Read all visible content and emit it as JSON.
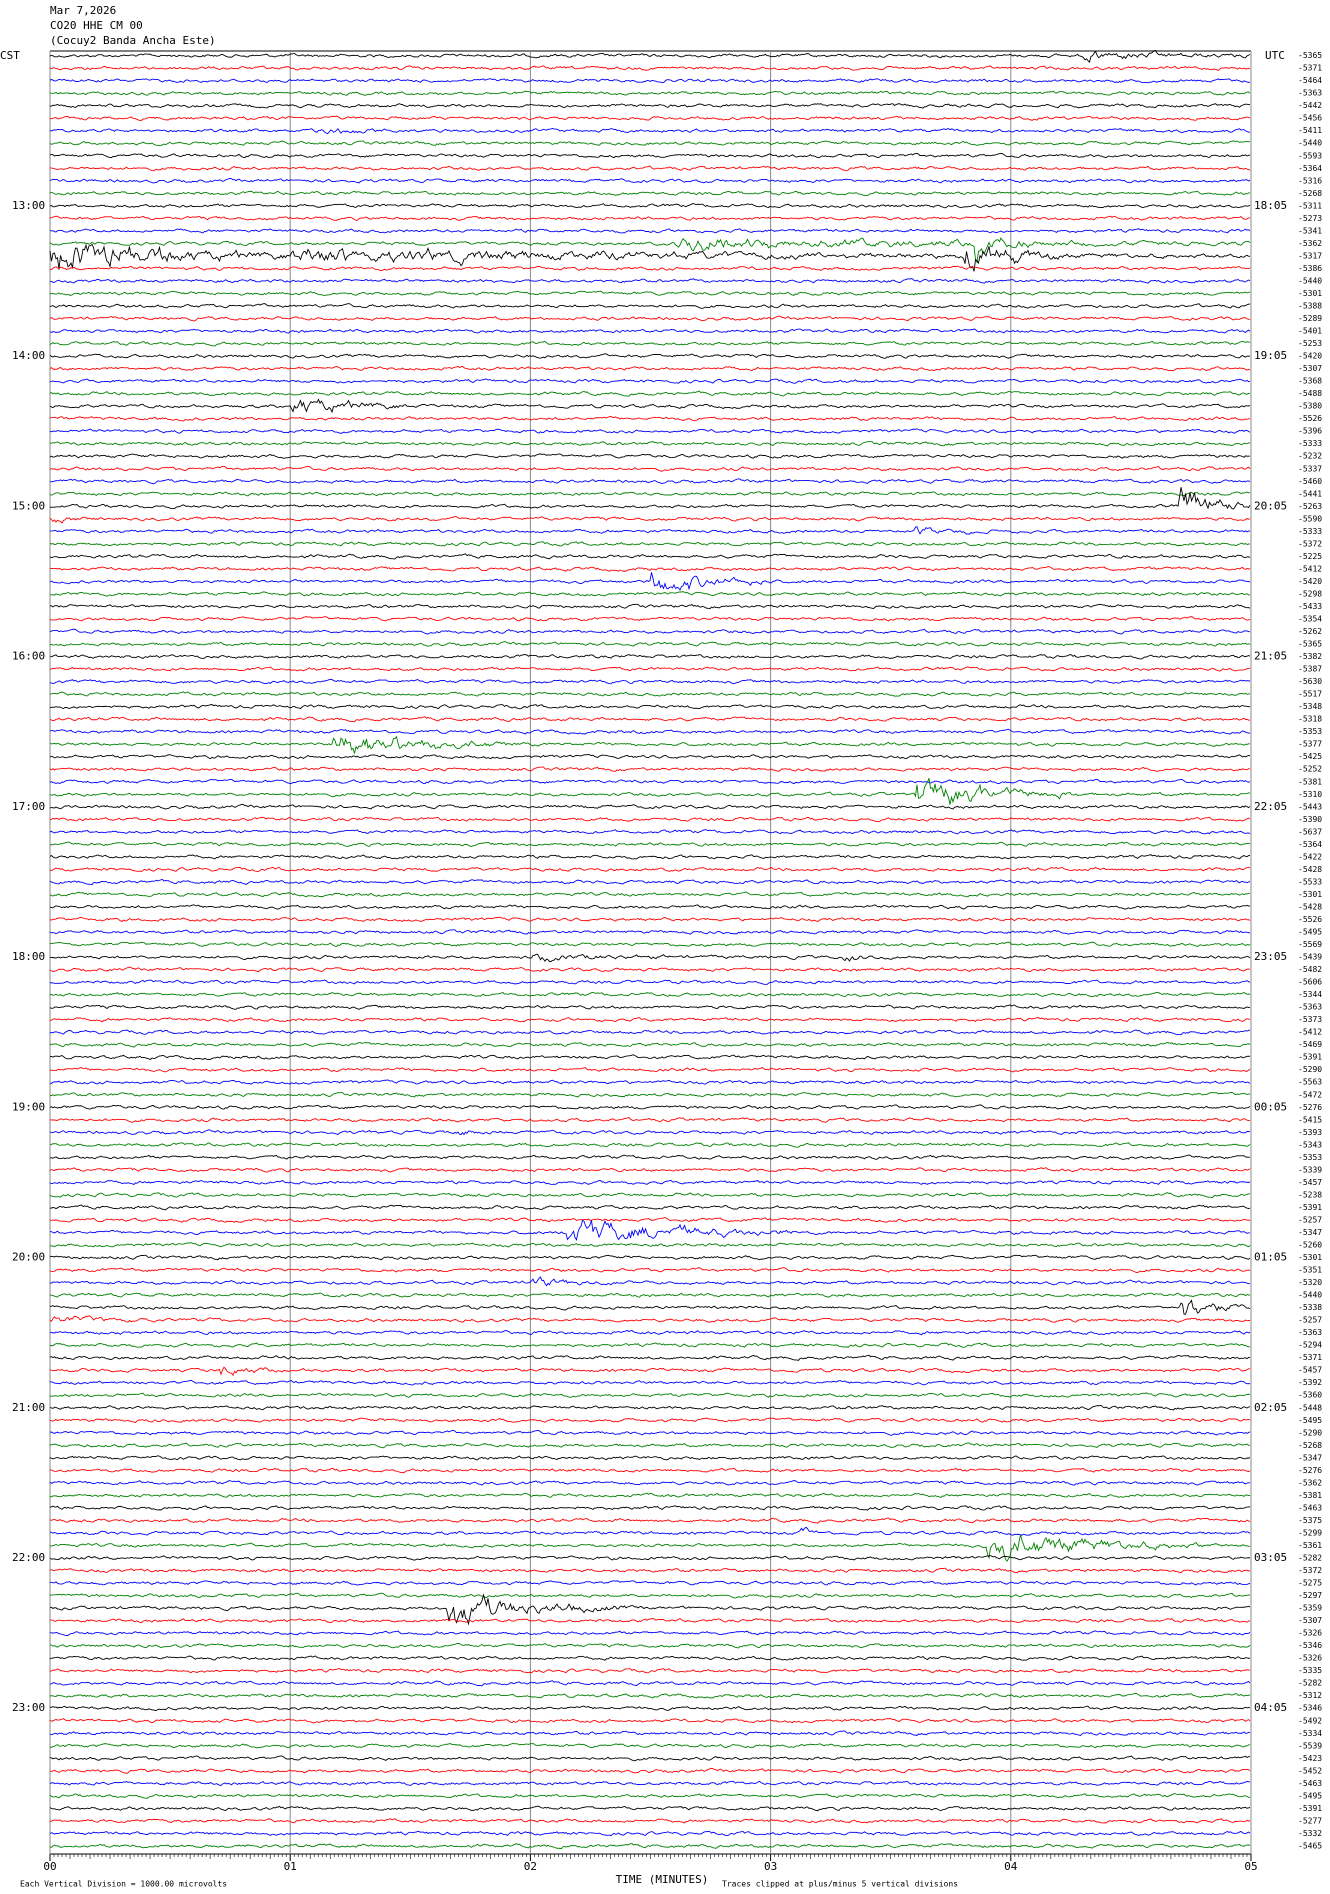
{
  "header": {
    "date": "Mar 7,2026",
    "station": "CO20 HHE CM 00",
    "site": "(Cocuy2 Banda Ancha Este)"
  },
  "left_axis_label": "CST",
  "right_axis_label": "UTC",
  "rows": {
    "colors": [
      "#000000",
      "#ff0000",
      "#0000ff",
      "#008000"
    ],
    "offsets": [
      "-5365",
      "-5371",
      "-5464",
      "-5363",
      "-5442",
      "-5456",
      "-5411",
      "-5440",
      "-5593",
      "-5364",
      "-5316",
      "-5268",
      "-5311",
      "-5273",
      "-5341",
      "-5362",
      "-5317",
      "-5386",
      "-5440",
      "-5301",
      "-5388",
      "-5289",
      "-5401",
      "-5253",
      "-5420",
      "-5307",
      "-5368",
      "-5488",
      "-5380",
      "-5526",
      "-5396",
      "-5333",
      "-5232",
      "-5337",
      "-5460",
      "-5441",
      "-5263",
      "-5590",
      "-5333",
      "-5372",
      "-5225",
      "-5412",
      "-5420",
      "-5298",
      "-5433",
      "-5354",
      "-5262",
      "-5365",
      "-5382",
      "-5387",
      "-5630",
      "-5517",
      "-5348",
      "-5318",
      "-5353",
      "-5377",
      "-5425",
      "-5252",
      "-5381",
      "-5310",
      "-5443",
      "-5390",
      "-5637",
      "-5364",
      "-5422",
      "-5428",
      "-5533",
      "-5301",
      "-5428",
      "-5526",
      "-5495",
      "-5569",
      "-5439",
      "-5482",
      "-5606",
      "-5344",
      "-5363",
      "-5373",
      "-5412",
      "-5469",
      "-5391",
      "-5290",
      "-5563",
      "-5472",
      "-5276",
      "-5415",
      "-5393",
      "-5343",
      "-5353",
      "-5339",
      "-5457",
      "-5238",
      "-5391",
      "-5257",
      "-5347",
      "-5260",
      "-5301",
      "-5351",
      "-5320",
      "-5440",
      "-5338",
      "-5257",
      "-5363",
      "-5294",
      "-5371",
      "-5457",
      "-5392",
      "-5360",
      "-5448",
      "-5495",
      "-5290",
      "-5268",
      "-5347",
      "-5276",
      "-5362",
      "-5381",
      "-5463",
      "-5375",
      "-5299",
      "-5361",
      "-5282",
      "-5372",
      "-5275",
      "-5297",
      "-5359",
      "-5307",
      "-5326",
      "-5346",
      "-5326",
      "-5335",
      "-5282",
      "-5312",
      "-5346",
      "-5492",
      "-5334",
      "-5539",
      "-5423",
      "-5452",
      "-5463",
      "-5495",
      "-5391",
      "-5277",
      "-5332",
      "-5465"
    ]
  },
  "hour_marks": [
    {
      "row": 12,
      "cst": "13:00",
      "utc": "18:05"
    },
    {
      "row": 24,
      "cst": "14:00",
      "utc": "19:05"
    },
    {
      "row": 36,
      "cst": "15:00",
      "utc": "20:05"
    },
    {
      "row": 48,
      "cst": "16:00",
      "utc": "21:05"
    },
    {
      "row": 60,
      "cst": "17:00",
      "utc": "22:05"
    },
    {
      "row": 72,
      "cst": "18:00",
      "utc": "23:05"
    },
    {
      "row": 84,
      "cst": "19:00",
      "utc": "00:05"
    },
    {
      "row": 96,
      "cst": "20:00",
      "utc": "01:05"
    },
    {
      "row": 108,
      "cst": "21:00",
      "utc": "02:05"
    },
    {
      "row": 120,
      "cst": "22:00",
      "utc": "03:05"
    },
    {
      "row": 132,
      "cst": "23:00",
      "utc": "04:05"
    }
  ],
  "x_axis": {
    "label": "TIME (MINUTES)",
    "xlim": [
      0,
      5
    ],
    "ticks": [
      {
        "value": 0,
        "label": "00"
      },
      {
        "value": 1,
        "label": "01"
      },
      {
        "value": 2,
        "label": "02"
      },
      {
        "value": 3,
        "label": "03"
      },
      {
        "value": 4,
        "label": "04"
      },
      {
        "value": 5,
        "label": "05"
      }
    ]
  },
  "footer": {
    "scale": "Each Vertical Division = 1000.00 microvolts",
    "clip": "Traces clipped at plus/minus 5 vertical divisions"
  },
  "events": [
    {
      "row": 0,
      "start": 4.3,
      "end": 5.0,
      "amp": 0.3
    },
    {
      "row": 6,
      "start": 1.1,
      "end": 1.4,
      "amp": 0.25
    },
    {
      "row": 15,
      "start": 2.6,
      "end": 5.0,
      "amp": 0.35
    },
    {
      "row": 15,
      "start": 3.85,
      "end": 4.1,
      "amp": 0.6
    },
    {
      "row": 16,
      "start": 0.0,
      "end": 1.0,
      "amp": 1.2
    },
    {
      "row": 16,
      "start": 1.0,
      "end": 5.0,
      "amp": 0.4
    },
    {
      "row": 16,
      "start": 3.8,
      "end": 4.2,
      "amp": 1.3
    },
    {
      "row": 28,
      "start": 1.0,
      "end": 1.5,
      "amp": 0.6
    },
    {
      "row": 36,
      "start": 4.7,
      "end": 5.0,
      "amp": 1.3
    },
    {
      "row": 37,
      "start": 0.0,
      "end": 0.15,
      "amp": 0.25
    },
    {
      "row": 38,
      "start": 3.6,
      "end": 3.95,
      "amp": 0.2
    },
    {
      "row": 42,
      "start": 2.5,
      "end": 3.0,
      "amp": 0.8
    },
    {
      "row": 55,
      "start": 1.18,
      "end": 1.9,
      "amp": 1.0
    },
    {
      "row": 59,
      "start": 3.6,
      "end": 4.3,
      "amp": 1.0
    },
    {
      "row": 72,
      "start": 2.0,
      "end": 2.6,
      "amp": 0.2
    },
    {
      "row": 72,
      "start": 3.3,
      "end": 3.5,
      "amp": 0.2
    },
    {
      "row": 86,
      "start": 1.7,
      "end": 1.9,
      "amp": 0.2
    },
    {
      "row": 94,
      "start": 2.15,
      "end": 3.1,
      "amp": 0.9
    },
    {
      "row": 98,
      "start": 2.0,
      "end": 2.35,
      "amp": 0.3
    },
    {
      "row": 100,
      "start": 4.7,
      "end": 5.0,
      "amp": 0.9
    },
    {
      "row": 101,
      "start": 0.0,
      "end": 0.45,
      "amp": 0.25
    },
    {
      "row": 105,
      "start": 0.7,
      "end": 0.95,
      "amp": 0.45
    },
    {
      "row": 118,
      "start": 3.12,
      "end": 3.2,
      "amp": 0.35
    },
    {
      "row": 119,
      "start": 3.9,
      "end": 4.8,
      "amp": 1.0
    },
    {
      "row": 124,
      "start": 1.65,
      "end": 2.4,
      "amp": 1.1
    }
  ]
}
